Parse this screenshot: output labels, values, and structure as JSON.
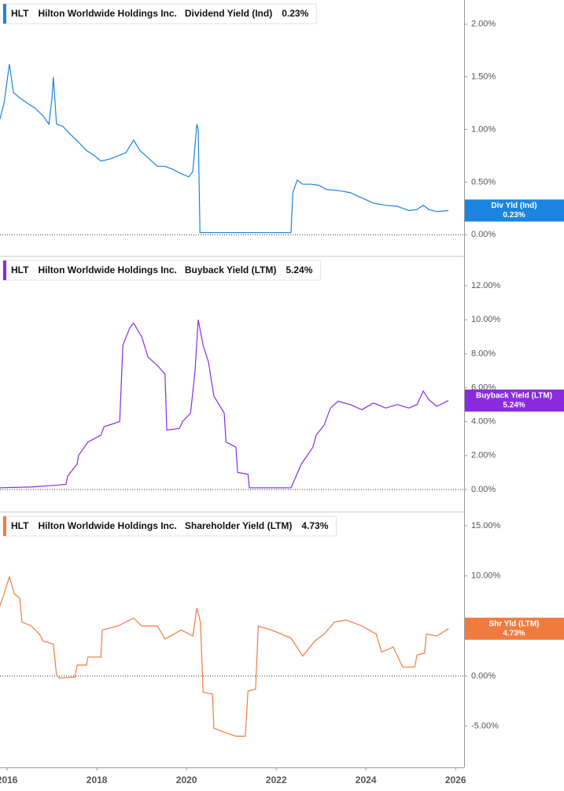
{
  "chart_data": [
    {
      "type": "line",
      "ticker": "HLT",
      "company": "Hilton Worldwide Holdings Inc.",
      "x": [
        2015.84,
        2015.93,
        2016.05,
        2016.14,
        2016.28,
        2016.45,
        2016.63,
        2016.8,
        2016.93,
        2017.0,
        2017.03,
        2017.1,
        2017.24,
        2017.42,
        2017.59,
        2017.77,
        2017.95,
        2018.09,
        2018.3,
        2018.47,
        2018.65,
        2018.82,
        2018.96,
        2019.17,
        2019.35,
        2019.52,
        2019.7,
        2019.88,
        2020.05,
        2020.14,
        2020.23,
        2020.26,
        2020.3,
        2021.1,
        2022.33,
        2022.37,
        2022.47,
        2022.59,
        2022.77,
        2022.95,
        2023.12,
        2023.38,
        2023.65,
        2023.91,
        2024.17,
        2024.44,
        2024.7,
        2024.96,
        2025.14,
        2025.28,
        2025.4,
        2025.58,
        2025.84
      ],
      "series": [
        {
          "name": "Dividend Yield (Ind)",
          "short_name": "Div Yld (Ind)",
          "color": "#1a84e0",
          "values": [
            1.1,
            1.25,
            1.62,
            1.35,
            1.3,
            1.25,
            1.2,
            1.13,
            1.05,
            1.3,
            1.5,
            1.05,
            1.03,
            0.95,
            0.88,
            0.8,
            0.75,
            0.7,
            0.72,
            0.75,
            0.78,
            0.9,
            0.8,
            0.72,
            0.65,
            0.65,
            0.62,
            0.58,
            0.55,
            0.6,
            1.05,
            1.0,
            0.02,
            0.02,
            0.02,
            0.4,
            0.52,
            0.48,
            0.48,
            0.47,
            0.43,
            0.42,
            0.4,
            0.35,
            0.3,
            0.28,
            0.27,
            0.23,
            0.24,
            0.28,
            0.24,
            0.22,
            0.23
          ],
          "last_value": 0.23,
          "last_value_label": "0.23%"
        }
      ],
      "xlim": [
        2015.84,
        2026.19
      ],
      "ylim": [
        -0.2,
        2.23
      ],
      "yticks": [
        {
          "value": 0,
          "label": "0.00%"
        },
        {
          "value": 0.5,
          "label": "0.50%"
        },
        {
          "value": 1,
          "label": "1.00%"
        },
        {
          "value": 1.5,
          "label": "1.50%"
        },
        {
          "value": 2,
          "label": "2.00%"
        }
      ],
      "zero_line": true
    },
    {
      "type": "line",
      "ticker": "HLT",
      "company": "Hilton Worldwide Holdings Inc.",
      "x": [
        2015.84,
        2016.54,
        2017.07,
        2017.31,
        2017.35,
        2017.56,
        2017.59,
        2017.8,
        2018.09,
        2018.16,
        2018.51,
        2018.58,
        2018.73,
        2018.82,
        2019.0,
        2019.14,
        2019.35,
        2019.52,
        2019.56,
        2019.84,
        2019.91,
        2020.09,
        2020.19,
        2020.26,
        2020.37,
        2020.49,
        2020.61,
        2020.84,
        2020.88,
        2021.1,
        2021.14,
        2021.37,
        2021.4,
        2022.33,
        2022.56,
        2022.82,
        2022.89,
        2023.07,
        2023.21,
        2023.38,
        2023.65,
        2023.91,
        2024.17,
        2024.44,
        2024.7,
        2024.96,
        2025.14,
        2025.28,
        2025.4,
        2025.58,
        2025.84
      ],
      "series": [
        {
          "name": "Buyback Yield (LTM)",
          "short_name": "Buyback Yield (LTM)",
          "color": "#8a2be2",
          "values": [
            0.1,
            0.15,
            0.25,
            0.3,
            0.8,
            1.5,
            2.0,
            2.8,
            3.2,
            3.7,
            4.0,
            8.5,
            9.5,
            9.8,
            9.0,
            7.8,
            7.3,
            6.8,
            3.5,
            3.6,
            4.0,
            4.5,
            7.0,
            10.0,
            8.5,
            7.5,
            5.5,
            4.5,
            2.8,
            2.5,
            1.0,
            0.9,
            0.1,
            0.1,
            1.5,
            2.5,
            3.2,
            3.8,
            4.8,
            5.2,
            5.0,
            4.7,
            5.1,
            4.8,
            5.0,
            4.8,
            5.0,
            5.8,
            5.3,
            4.9,
            5.24
          ],
          "last_value": 5.24,
          "last_value_label": "5.24%"
        }
      ],
      "xlim": [
        2015.84,
        2026.19
      ],
      "ylim": [
        -1.3,
        13.72
      ],
      "yticks": [
        {
          "value": 0,
          "label": "0.00%"
        },
        {
          "value": 2,
          "label": "2.00%"
        },
        {
          "value": 4,
          "label": "4.00%"
        },
        {
          "value": 6,
          "label": "6.00%"
        },
        {
          "value": 8,
          "label": "8.00%"
        },
        {
          "value": 10,
          "label": "10.00%"
        },
        {
          "value": 12,
          "label": "12.00%"
        }
      ],
      "zero_line": true
    },
    {
      "type": "line",
      "ticker": "HLT",
      "company": "Hilton Worldwide Holdings Inc.",
      "x": [
        2015.84,
        2015.93,
        2016.05,
        2016.16,
        2016.28,
        2016.33,
        2016.54,
        2016.72,
        2016.8,
        2017.03,
        2017.1,
        2017.16,
        2017.51,
        2017.56,
        2017.77,
        2017.8,
        2018.09,
        2018.12,
        2018.47,
        2018.82,
        2019.0,
        2019.35,
        2019.52,
        2019.88,
        2020.14,
        2020.23,
        2020.31,
        2020.37,
        2020.58,
        2020.61,
        2020.84,
        2021.1,
        2021.31,
        2021.37,
        2021.54,
        2021.6,
        2021.89,
        2022.33,
        2022.59,
        2022.86,
        2023.07,
        2023.3,
        2023.56,
        2023.91,
        2024.23,
        2024.35,
        2024.61,
        2024.82,
        2025.09,
        2025.14,
        2025.31,
        2025.35,
        2025.58,
        2025.84
      ],
      "series": [
        {
          "name": "Shareholder Yield (LTM)",
          "short_name": "Shr Yld (LTM)",
          "color": "#f07b3f",
          "values": [
            7.0,
            8.2,
            9.9,
            8.2,
            7.8,
            5.4,
            5.0,
            4.2,
            3.5,
            3.2,
            0.1,
            -0.2,
            -0.1,
            1.1,
            1.1,
            1.9,
            1.9,
            4.6,
            5.0,
            5.8,
            5.0,
            5.0,
            3.7,
            4.6,
            4.0,
            6.8,
            5.4,
            -1.6,
            -1.8,
            -5.2,
            -5.6,
            -6.0,
            -6.0,
            -1.5,
            -1.3,
            5.0,
            4.6,
            3.8,
            2.0,
            3.5,
            4.2,
            5.4,
            5.6,
            5.0,
            4.2,
            2.4,
            2.9,
            0.9,
            0.9,
            2.1,
            2.3,
            4.2,
            4.0,
            4.73
          ],
          "last_value": 4.73,
          "last_value_label": "4.73%"
        }
      ],
      "xlim": [
        2015.84,
        2026.19
      ],
      "ylim": [
        -9.11,
        16.34
      ],
      "yticks": [
        {
          "value": -5,
          "label": "-5.00%"
        },
        {
          "value": 0,
          "label": "0.00%"
        },
        {
          "value": 5,
          "label": "5.00%"
        },
        {
          "value": 10,
          "label": "10.00%"
        },
        {
          "value": 15,
          "label": "15.00%"
        }
      ],
      "xticks": [
        2016,
        2018,
        2020,
        2022,
        2024,
        2026
      ],
      "zero_line": true
    }
  ]
}
